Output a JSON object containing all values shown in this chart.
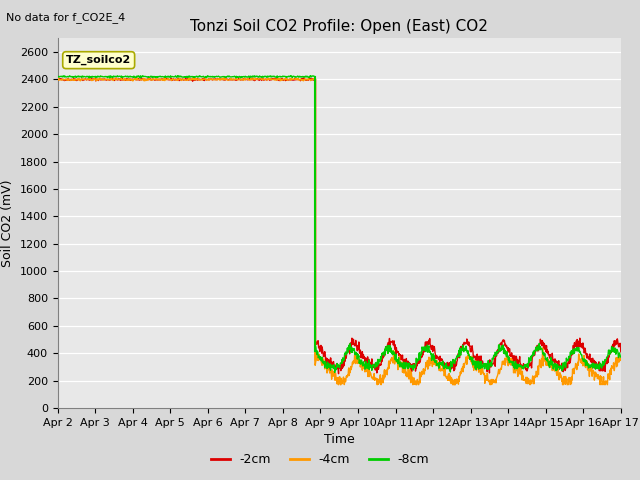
{
  "title": "Tonzi Soil CO2 Profile: Open (East) CO2",
  "no_data_label": "No data for f_CO2E_4",
  "xlabel": "Time",
  "ylabel": "Soil CO2 (mV)",
  "ylim": [
    0,
    2700
  ],
  "yticks": [
    0,
    200,
    400,
    600,
    800,
    1000,
    1200,
    1400,
    1600,
    1800,
    2000,
    2200,
    2400,
    2600
  ],
  "xtick_labels": [
    "Apr 2",
    "Apr 3",
    "Apr 4",
    "Apr 5",
    "Apr 6",
    "Apr 7",
    "Apr 8",
    "Apr 9",
    "Apr 10",
    "Apr 11",
    "Apr 12",
    "Apr 13",
    "Apr 14",
    "Apr 15",
    "Apr 16",
    "Apr 17"
  ],
  "fig_bg_color": "#d8d8d8",
  "plot_bg_color": "#e8e8e8",
  "line_colors": {
    "m2cm": "#dd0000",
    "m4cm": "#ff9900",
    "m8cm": "#00cc00"
  },
  "legend_box_color": "#ffffcc",
  "legend_box_edge": "#aaaa00",
  "legend_label": "TZ_soilco2",
  "legend_labels": [
    "-2cm",
    "-4cm",
    "-8cm"
  ],
  "flat_value_m2cm": 2400,
  "flat_value_m4cm": 2400,
  "flat_value_m8cm": 2420,
  "drop_day": 6.85,
  "title_fontsize": 11,
  "axis_fontsize": 9,
  "tick_fontsize": 8
}
